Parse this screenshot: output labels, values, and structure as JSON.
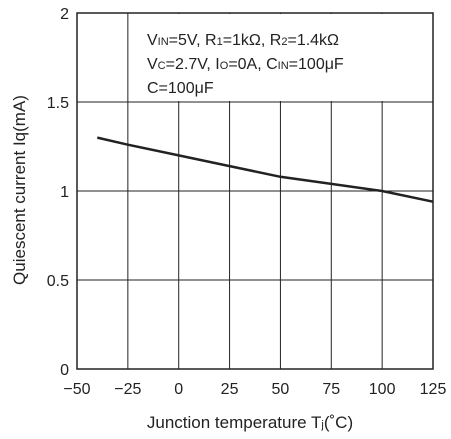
{
  "chart_data": {
    "type": "line",
    "xlabel_main": "Junction temperature T",
    "xlabel_sub": "j",
    "xlabel_unit": "(˚C)",
    "ylabel": "Quiescent current Iq(mA)",
    "xlim": [
      -50,
      125
    ],
    "ylim": [
      0,
      2
    ],
    "x_ticks": [
      -50,
      -25,
      0,
      25,
      50,
      75,
      100,
      125
    ],
    "x_tick_labels": [
      "−50",
      "−25",
      "0",
      "25",
      "50",
      "75",
      "100",
      "125"
    ],
    "y_ticks": [
      0,
      0.5,
      1,
      1.5,
      2
    ],
    "y_tick_labels": [
      "0",
      "0.5",
      "1",
      "1.5",
      "2"
    ],
    "grid": true,
    "series": [
      {
        "x": [
          -40,
          -25,
          0,
          25,
          50,
          75,
          100,
          125
        ],
        "y": [
          1.3,
          1.26,
          1.2,
          1.14,
          1.08,
          1.04,
          1.0,
          0.94
        ]
      }
    ],
    "annotations": {
      "line1": {
        "a": "V",
        "a_sub": "IN",
        "b": "=5V, R",
        "b_sub": "1",
        "c": "=1kΩ, R",
        "c_sub": "2",
        "d": "=1.4kΩ"
      },
      "line2": {
        "a": "V",
        "a_sub": "C",
        "b": "=2.7V, I",
        "b_sub": "O",
        "c": "=0A, C",
        "c_sub": "IN",
        "d": "=100μF"
      },
      "line3": "C=100μF"
    }
  }
}
